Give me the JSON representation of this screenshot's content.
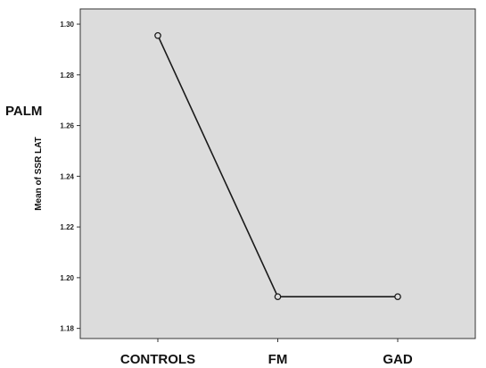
{
  "chart_data": {
    "type": "line",
    "side_label": "PALM",
    "ylabel": "Mean of SSR LAT",
    "xlabel": "",
    "categories": [
      "CONTROLS",
      "FM",
      "GAD"
    ],
    "series": [
      {
        "values": [
          1.2955,
          1.1925,
          1.1925
        ]
      }
    ],
    "ylim": [
      1.176,
      1.306
    ],
    "yticks": [
      "1.18",
      "1.20",
      "1.22",
      "1.24",
      "1.26",
      "1.28",
      "1.30"
    ],
    "grid": false,
    "legend": "none",
    "colors": {
      "plot_background": "#dcdcdc",
      "line": "#1a1a1a",
      "marker_fill": "#dcdcdc"
    }
  }
}
